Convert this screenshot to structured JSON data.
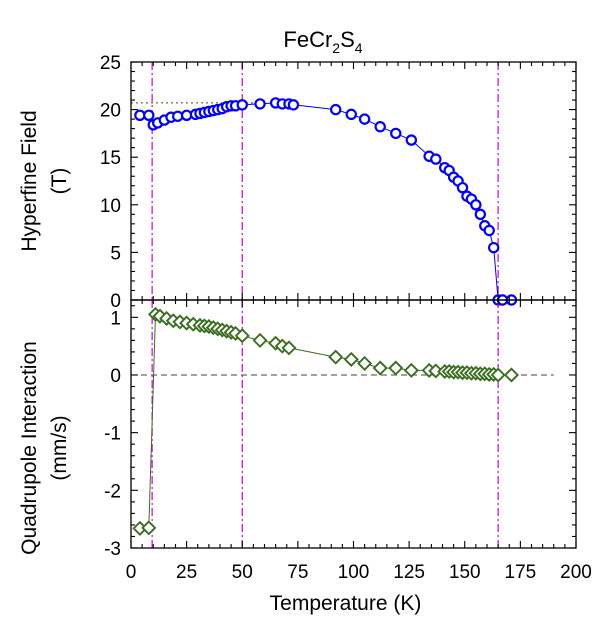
{
  "title": {
    "main": "FeCr",
    "sub1": "2",
    "mid": "S",
    "sub2": "4"
  },
  "chart_data": [
    {
      "type": "scatter",
      "panel": "top",
      "ylabel_line1": "Hyperfine Field",
      "ylabel_line2": "(T)",
      "xlim": [
        0,
        200
      ],
      "ylim": [
        0,
        25
      ],
      "yticks": [
        "0",
        "5",
        "10",
        "15",
        "20",
        "25"
      ],
      "marker": "circle",
      "color": "#0000ff",
      "reference_line": {
        "y": 20.7,
        "x_range": [
          0,
          58
        ],
        "style": "dotted",
        "color": "#444444"
      },
      "series": [
        {
          "x": [
            4,
            8,
            10,
            12,
            15,
            18,
            21,
            25,
            29,
            31,
            33,
            35,
            37,
            39,
            41,
            43,
            45,
            47,
            50,
            58,
            65,
            68,
            71,
            73,
            92,
            99,
            105,
            112,
            119,
            126,
            134,
            137,
            141,
            143,
            145,
            147,
            149,
            151,
            153,
            155,
            157,
            159,
            161,
            163,
            165,
            167,
            171
          ],
          "y": [
            19.4,
            19.4,
            18.4,
            18.6,
            18.9,
            19.2,
            19.3,
            19.4,
            19.5,
            19.6,
            19.7,
            19.8,
            19.9,
            20.0,
            20.1,
            20.3,
            20.4,
            20.4,
            20.5,
            20.6,
            20.7,
            20.6,
            20.6,
            20.5,
            20.0,
            19.5,
            19.0,
            18.2,
            17.5,
            16.8,
            15.1,
            14.8,
            13.9,
            13.6,
            12.9,
            12.5,
            11.8,
            10.9,
            10.6,
            10.0,
            9.0,
            7.8,
            7.3,
            5.5,
            0.0,
            0.0,
            0.0
          ]
        }
      ]
    },
    {
      "type": "scatter",
      "panel": "bottom",
      "ylabel_line1": "Quadrupole Interaction",
      "ylabel_line2": "(mm/s)",
      "xlabel": "Temperature  (K)",
      "xlim": [
        0,
        200
      ],
      "ylim": [
        -3,
        1.3
      ],
      "xticks": [
        "0",
        "25",
        "50",
        "75",
        "100",
        "125",
        "150",
        "175",
        "200"
      ],
      "yticks": [
        "-3",
        "-2",
        "-1",
        "0",
        "1"
      ],
      "marker": "diamond",
      "color": "#3a6e1f",
      "reference_line": {
        "y": 0,
        "x_range": [
          0,
          190
        ],
        "style": "dashed",
        "color": "#444444"
      },
      "series": [
        {
          "x": [
            4,
            8,
            11,
            13,
            16,
            19,
            22,
            25,
            28,
            31,
            33,
            35,
            37,
            39,
            41,
            43,
            45,
            47,
            50,
            58,
            65,
            68,
            71,
            92,
            99,
            105,
            112,
            119,
            126,
            134,
            137,
            141,
            143,
            145,
            147,
            149,
            151,
            153,
            155,
            157,
            159,
            161,
            163,
            165,
            171
          ],
          "y": [
            -2.66,
            -2.65,
            1.05,
            1.02,
            0.98,
            0.94,
            0.92,
            0.9,
            0.88,
            0.86,
            0.85,
            0.84,
            0.82,
            0.8,
            0.78,
            0.76,
            0.74,
            0.72,
            0.68,
            0.6,
            0.55,
            0.5,
            0.47,
            0.31,
            0.27,
            0.2,
            0.12,
            0.12,
            0.08,
            0.08,
            0.07,
            0.06,
            0.06,
            0.05,
            0.05,
            0.04,
            0.04,
            0.03,
            0.03,
            0.02,
            0.02,
            0.01,
            0.01,
            0.0,
            0.0
          ]
        }
      ]
    }
  ],
  "vertical_lines": {
    "x": [
      9.5,
      50,
      165
    ],
    "color": "#cc00cc"
  },
  "colors": {
    "circle": "#0000ff",
    "diamond": "#3a6e1f",
    "vline": "#cc00cc",
    "refline": "#444444"
  }
}
